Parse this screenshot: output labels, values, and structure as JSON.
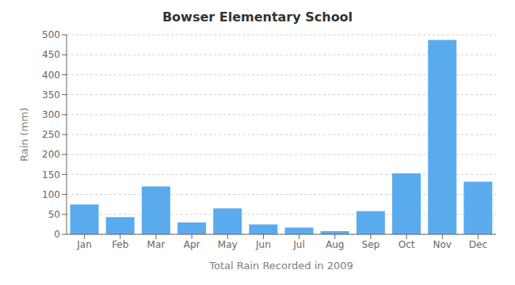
{
  "chart_data": {
    "type": "bar",
    "title": "Bowser Elementary School",
    "xlabel": "Total Rain Recorded in 2009",
    "ylabel": "Rain (mm)",
    "categories": [
      "Jan",
      "Feb",
      "Mar",
      "Apr",
      "May",
      "Jun",
      "Jul",
      "Aug",
      "Sep",
      "Oct",
      "Nov",
      "Dec"
    ],
    "values": [
      75,
      43,
      120,
      30,
      65,
      25,
      17,
      8,
      58,
      153,
      487,
      132
    ],
    "color": "#5aabee",
    "ylim": [
      0,
      500
    ],
    "yticks": [
      0,
      50,
      100,
      150,
      200,
      250,
      300,
      350,
      400,
      450,
      500
    ],
    "grid": true
  }
}
